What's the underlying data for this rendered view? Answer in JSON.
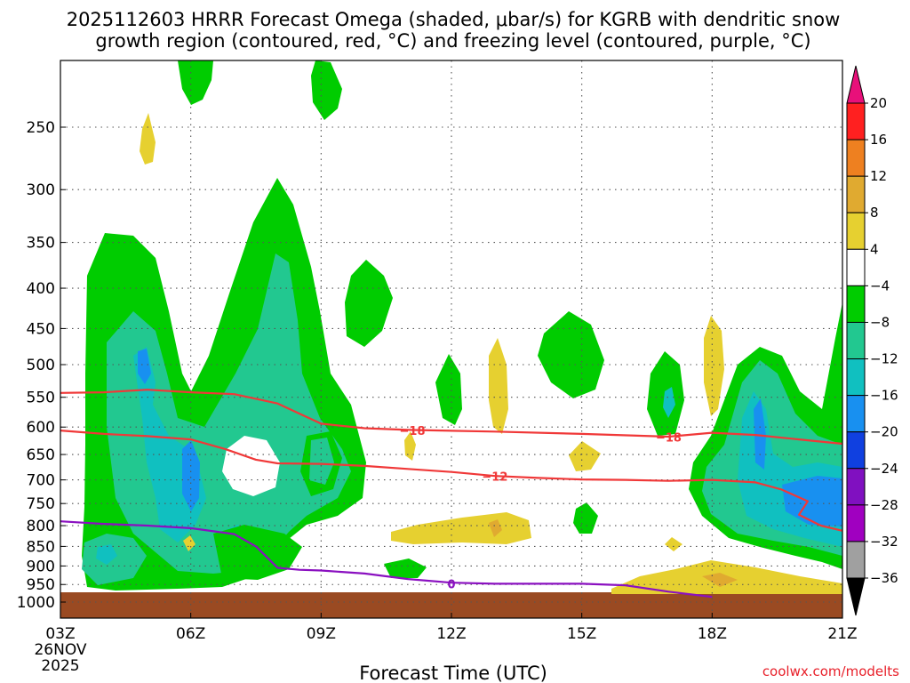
{
  "title": {
    "line1": "2025112603 HRRR Forecast Omega (shaded, μbar/s) for KGRB with dendritic snow",
    "line2": "growth region (contoured, red, °C) and freezing level (contoured, purple, °C)"
  },
  "credit": "coolwx.com/modelts",
  "chart_data": {
    "type": "contour",
    "title": "2025112603 HRRR Forecast Omega (shaded, μbar/s) for KGRB with dendritic snow growth region (contoured, red, °C) and freezing level (contoured, purple, °C)",
    "xlabel": "Forecast Time (UTC)",
    "ylabel": "",
    "x_hour_range": [
      3,
      21
    ],
    "y_pressure_range_hpa": [
      1050,
      200
    ],
    "x_ticks": [
      {
        "hour": 3,
        "label": "03Z",
        "sub1": "26NOV",
        "sub2": "2025"
      },
      {
        "hour": 6,
        "label": "06Z"
      },
      {
        "hour": 9,
        "label": "09Z"
      },
      {
        "hour": 12,
        "label": "12Z"
      },
      {
        "hour": 15,
        "label": "15Z"
      },
      {
        "hour": 18,
        "label": "18Z"
      },
      {
        "hour": 21,
        "label": "21Z"
      }
    ],
    "y_ticks": [
      250,
      300,
      350,
      400,
      450,
      500,
      550,
      600,
      650,
      700,
      750,
      800,
      850,
      900,
      950,
      1000
    ],
    "colorbar": {
      "labels": [
        "20",
        "16",
        "12",
        "8",
        "4",
        "−4",
        "−8",
        "−12",
        "−16",
        "−20",
        "−24",
        "−28",
        "−32",
        "−36"
      ],
      "colors": [
        "#ff2020",
        "#ee8020",
        "#e0aa30",
        "#e6d030",
        "#ffffff",
        "#00cc00",
        "#22c890",
        "#10c0c0",
        "#1890f0",
        "#1040e0",
        "#8010c0",
        "#a000c0",
        "#a0a0a0"
      ],
      "top_arrow_color": "#e8107a",
      "bottom_arrow_color": "#000000"
    },
    "contours": [
      {
        "name": "dgz-top",
        "value": -18,
        "label": "−18",
        "color": "#f03838",
        "points": [
          [
            3.0,
            543
          ],
          [
            4.0,
            542
          ],
          [
            5.0,
            538
          ],
          [
            6.0,
            542
          ],
          [
            7.0,
            545
          ],
          [
            8.0,
            560
          ],
          [
            9.0,
            594
          ],
          [
            10.0,
            602
          ],
          [
            11.0,
            605
          ],
          [
            13.0,
            608
          ],
          [
            15.0,
            612
          ],
          [
            17.0,
            617
          ],
          [
            18.0,
            610
          ],
          [
            19.0,
            614
          ],
          [
            20.0,
            622
          ],
          [
            21.0,
            630
          ]
        ],
        "label_at": [
          11.1,
          606
        ]
      },
      {
        "name": "dgz-mid",
        "value": -18,
        "label": "−18",
        "color": "#f03838",
        "points": [
          [
            17.0,
            617
          ],
          [
            18.0,
            610
          ]
        ],
        "label_at": [
          17.0,
          618
        ]
      },
      {
        "name": "dgz-bottom",
        "value": -12,
        "label": "−12",
        "color": "#f03838",
        "points": [
          [
            3.0,
            606
          ],
          [
            4.0,
            612
          ],
          [
            5.0,
            616
          ],
          [
            6.0,
            622
          ],
          [
            6.8,
            640
          ],
          [
            7.5,
            660
          ],
          [
            8.0,
            667
          ],
          [
            9.0,
            668
          ],
          [
            10.0,
            672
          ],
          [
            11.0,
            678
          ],
          [
            12.0,
            684
          ],
          [
            13.0,
            692
          ],
          [
            14.0,
            696
          ],
          [
            15.0,
            699
          ],
          [
            16.0,
            700
          ],
          [
            17.0,
            702
          ],
          [
            18.0,
            700
          ],
          [
            19.0,
            705
          ],
          [
            19.6,
            720
          ],
          [
            20.2,
            745
          ],
          [
            20.0,
            775
          ],
          [
            20.5,
            800
          ],
          [
            21.0,
            812
          ]
        ],
        "label_at": [
          13.0,
          693
        ]
      },
      {
        "name": "freezing-level",
        "value": 0,
        "label": "0",
        "color": "#8a10c0",
        "points": [
          [
            3.0,
            790
          ],
          [
            4.0,
            796
          ],
          [
            5.0,
            800
          ],
          [
            6.0,
            806
          ],
          [
            7.0,
            820
          ],
          [
            7.5,
            850
          ],
          [
            8.0,
            905
          ],
          [
            8.5,
            910
          ],
          [
            9.0,
            912
          ],
          [
            10.0,
            920
          ],
          [
            11.0,
            935
          ],
          [
            12.0,
            945
          ],
          [
            13.0,
            948
          ],
          [
            14.0,
            948
          ],
          [
            15.0,
            948
          ],
          [
            16.0,
            952
          ],
          [
            17.0,
            970
          ],
          [
            18.0,
            985
          ]
        ],
        "label_at": [
          12.0,
          948
        ]
      }
    ]
  }
}
